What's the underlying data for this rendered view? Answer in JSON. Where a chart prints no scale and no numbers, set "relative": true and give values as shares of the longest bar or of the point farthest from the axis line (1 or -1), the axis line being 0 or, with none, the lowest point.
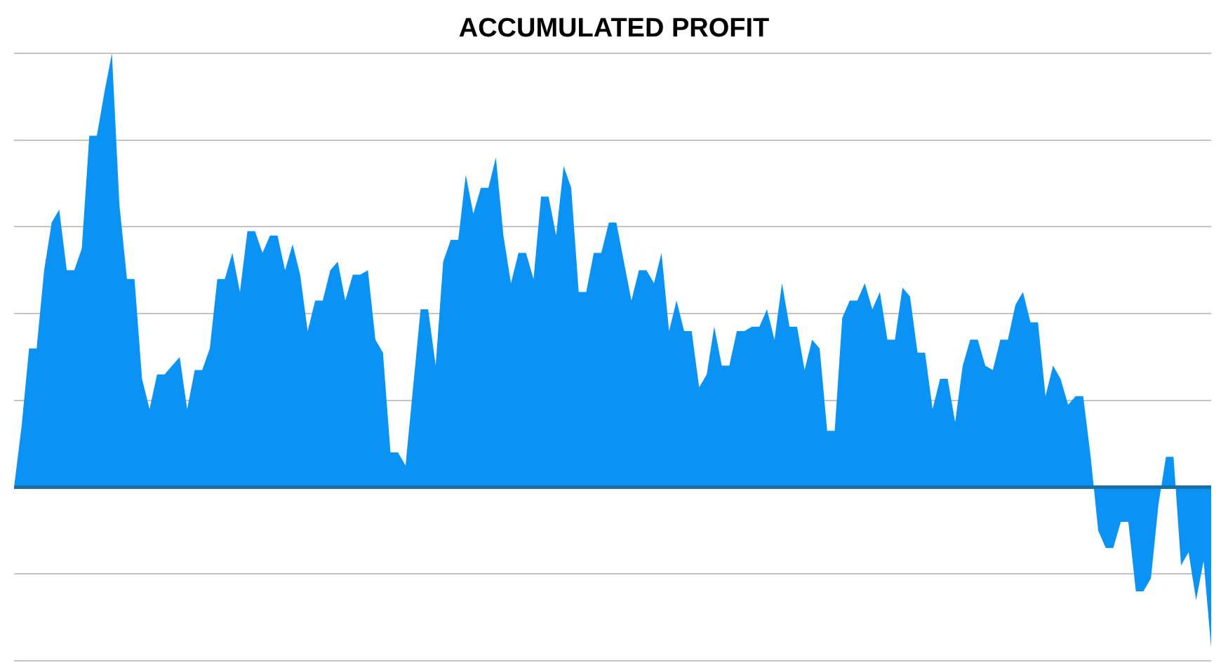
{
  "chart_data": {
    "type": "area",
    "title": "ACCUMULATED PROFIT",
    "relative": true,
    "grid": "y",
    "legend": false,
    "ref_lines": [
      {
        "axis": "y",
        "value": 0,
        "color": "#1a6fa6"
      }
    ],
    "categories": [
      null,
      null,
      null,
      null,
      null,
      null,
      null,
      null,
      null,
      null,
      null,
      null,
      null,
      null,
      null,
      null,
      null,
      null,
      null,
      null,
      null,
      null,
      null,
      null,
      null,
      null,
      null,
      null,
      null,
      null,
      null,
      null,
      null,
      null,
      null,
      null,
      null,
      null,
      null,
      null,
      null,
      null,
      null,
      null,
      null,
      null,
      null,
      null,
      null,
      null,
      null,
      null,
      null,
      null,
      null,
      null,
      null,
      null,
      null,
      null,
      null,
      null,
      null,
      null,
      null,
      null,
      null,
      null,
      null,
      null,
      null,
      null,
      null,
      null,
      null,
      null,
      null,
      null,
      null,
      null,
      null,
      null,
      null,
      null,
      null,
      null,
      null,
      null,
      null,
      null,
      null,
      null,
      null,
      null,
      null,
      null,
      null,
      null,
      null,
      null,
      null,
      null,
      null,
      null,
      null,
      null,
      null,
      null,
      null,
      null,
      null,
      null,
      null,
      null,
      null,
      null,
      null,
      null,
      null,
      null,
      null,
      null,
      null,
      null,
      null,
      null,
      null,
      null,
      null,
      null,
      null,
      null,
      null,
      null,
      null,
      null,
      null,
      null,
      null,
      null,
      null,
      null,
      null,
      null,
      null,
      null,
      null,
      null,
      null,
      null,
      null,
      null,
      null,
      null,
      null,
      null,
      null,
      null,
      null,
      null
    ],
    "series": [
      {
        "color": "#0a93f5",
        "values": [
          0,
          0.14,
          0.32,
          0.32,
          0.5,
          0.61,
          0.64,
          0.5,
          0.5,
          0.55,
          0.81,
          0.81,
          0.91,
          1,
          0.65,
          0.48,
          0.48,
          0.25,
          0.18,
          0.26,
          0.26,
          0.28,
          0.3,
          0.18,
          0.27,
          0.27,
          0.32,
          0.48,
          0.48,
          0.54,
          0.45,
          0.59,
          0.59,
          0.54,
          0.58,
          0.58,
          0.5,
          0.56,
          0.49,
          0.36,
          0.43,
          0.43,
          0.5,
          0.52,
          0.43,
          0.49,
          0.49,
          0.5,
          0.34,
          0.31,
          0.08,
          0.08,
          0.05,
          0.23,
          0.41,
          0.41,
          0.28,
          0.52,
          0.57,
          0.57,
          0.72,
          0.63,
          0.69,
          0.69,
          0.76,
          0.58,
          0.47,
          0.54,
          0.54,
          0.48,
          0.67,
          0.67,
          0.58,
          0.74,
          0.69,
          0.45,
          0.45,
          0.54,
          0.54,
          0.61,
          0.61,
          0.52,
          0.43,
          0.5,
          0.5,
          0.47,
          0.54,
          0.36,
          0.43,
          0.36,
          0.36,
          0.23,
          0.26,
          0.37,
          0.28,
          0.28,
          0.36,
          0.36,
          0.37,
          0.37,
          0.41,
          0.34,
          0.47,
          0.37,
          0.37,
          0.27,
          0.34,
          0.32,
          0.13,
          0.13,
          0.39,
          0.43,
          0.43,
          0.47,
          0.41,
          0.45,
          0.34,
          0.34,
          0.46,
          0.44,
          0.31,
          0.31,
          0.18,
          0.25,
          0.25,
          0.15,
          0.28,
          0.34,
          0.34,
          0.28,
          0.27,
          0.34,
          0.34,
          0.42,
          0.45,
          0.38,
          0.38,
          0.21,
          0.28,
          0.25,
          0.19,
          0.21,
          0.21,
          0.07,
          -0.1,
          -0.14,
          -0.14,
          -0.08,
          -0.08,
          -0.24,
          -0.24,
          -0.21,
          -0.04,
          0.07,
          0.07,
          -0.18,
          -0.15,
          -0.26,
          -0.17,
          -0.37
        ]
      }
    ]
  }
}
